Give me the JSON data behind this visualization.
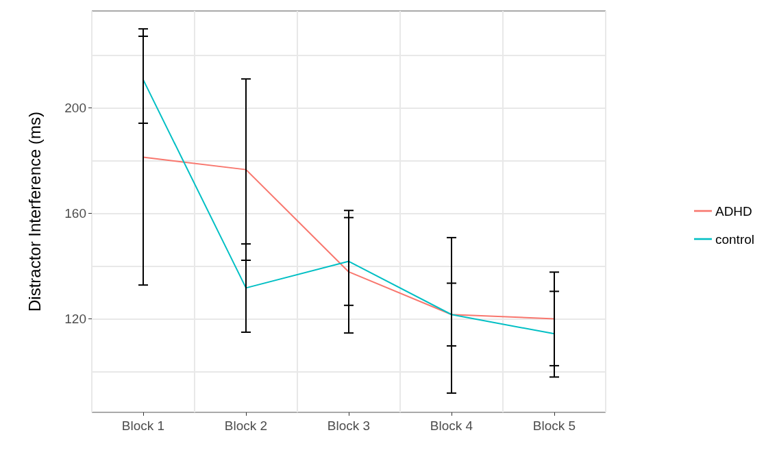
{
  "chart_data": {
    "type": "line",
    "ylabel": "Distractor Interference (ms)",
    "categories": [
      "Block 1",
      "Block 2",
      "Block 3",
      "Block 4",
      "Block 5"
    ],
    "series": [
      {
        "name": "ADHD",
        "color": "#f8766d",
        "values": [
          181.3,
          176.6,
          137.8,
          121.6,
          120.0
        ],
        "errors": [
          [
            132.8,
            230
          ],
          [
            142.2,
            211
          ],
          [
            114.6,
            161.1
          ],
          [
            91.8,
            150.8
          ],
          [
            102.2,
            137.7
          ]
        ]
      },
      {
        "name": "control",
        "color": "#00bfc4",
        "values": [
          210.7,
          131.7,
          141.8,
          121.6,
          114.3
        ],
        "errors": [
          [
            194.2,
            227.2
          ],
          [
            114.9,
            148.4
          ],
          [
            125.1,
            158.4
          ],
          [
            109.7,
            133.5
          ],
          [
            97.9,
            130.4
          ]
        ]
      }
    ],
    "ylim": [
      84.5,
      236.8
    ],
    "yticks": [
      {
        "value": 100,
        "label": null
      },
      120,
      {
        "value": 140,
        "label": null
      },
      160,
      {
        "value": 180,
        "label": null
      },
      200,
      {
        "value": 220,
        "label": null
      }
    ],
    "grid": true,
    "legend": "right",
    "marker": "none",
    "line_style": "solid"
  }
}
